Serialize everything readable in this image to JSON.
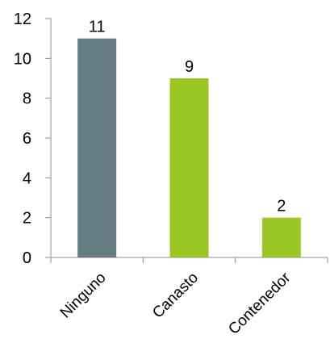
{
  "chart_data": {
    "type": "bar",
    "categories": [
      "Ninguno",
      "Canasto",
      "Contenedor"
    ],
    "values": [
      11,
      9,
      2
    ],
    "data_labels": [
      "11",
      "9",
      "2"
    ],
    "bar_colors": [
      "#637d82",
      "#99c824",
      "#99c824"
    ],
    "ylim": [
      0,
      12
    ],
    "yticks": [
      0,
      2,
      4,
      6,
      8,
      10,
      12
    ],
    "ytick_labels": [
      "0",
      "2",
      "4",
      "6",
      "8",
      "10",
      "12"
    ],
    "title": "",
    "xlabel": "",
    "ylabel": "",
    "grid": false,
    "legend": "none"
  }
}
